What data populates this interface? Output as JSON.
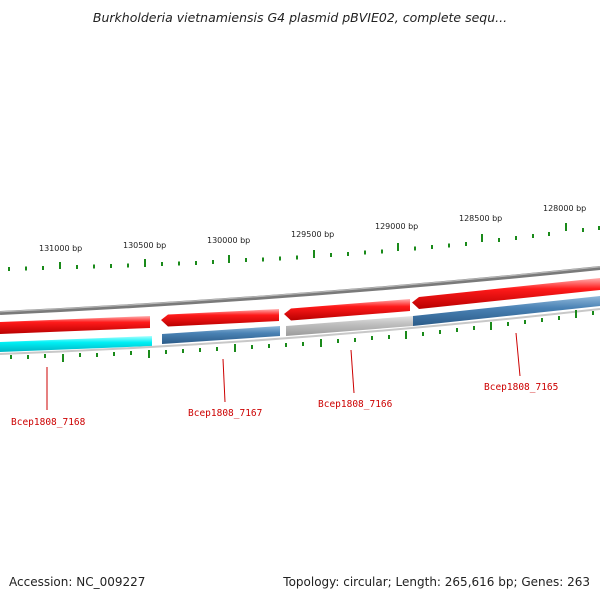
{
  "header": {
    "title": "Burkholderia vietnamiensis G4 plasmid pBVIE02, complete sequ..."
  },
  "footer": {
    "accession": "Accession: NC_009227",
    "summary": "Topology: circular; Length: 265,616 bp; Genes: 263"
  },
  "ruler": {
    "labels": [
      {
        "text": "131000 bp"
      },
      {
        "text": "130500 bp"
      },
      {
        "text": "130000 bp"
      },
      {
        "text": "129500 bp"
      },
      {
        "text": "129000 bp"
      },
      {
        "text": "128500 bp"
      },
      {
        "text": "128000 bp"
      }
    ]
  },
  "genes": [
    {
      "label": "Bcep1808_7168"
    },
    {
      "label": "Bcep1808_7167"
    },
    {
      "label": "Bcep1808_7166"
    },
    {
      "label": "Bcep1808_7165"
    }
  ],
  "colors": {
    "backbone": "#888888",
    "cds_forward": "#ee0000",
    "track_cyan": "#00e5ee",
    "track_blue": "#3e76a8",
    "track_gray": "#b8b8b8",
    "tick": "#1a8a1a",
    "gene_label": "#cc0000"
  }
}
